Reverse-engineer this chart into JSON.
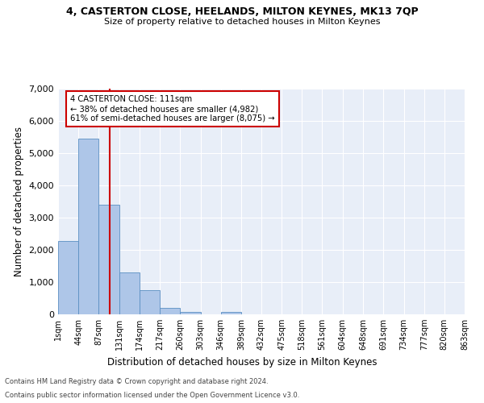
{
  "title_line1": "4, CASTERTON CLOSE, HEELANDS, MILTON KEYNES, MK13 7QP",
  "title_line2": "Size of property relative to detached houses in Milton Keynes",
  "xlabel": "Distribution of detached houses by size in Milton Keynes",
  "ylabel": "Number of detached properties",
  "footnote1": "Contains HM Land Registry data © Crown copyright and database right 2024.",
  "footnote2": "Contains public sector information licensed under the Open Government Licence v3.0.",
  "annotation_title": "4 CASTERTON CLOSE: 111sqm",
  "annotation_line2": "← 38% of detached houses are smaller (4,982)",
  "annotation_line3": "61% of semi-detached houses are larger (8,075) →",
  "bar_color": "#aec6e8",
  "bar_edge_color": "#5a8fc2",
  "bg_color": "#e8eef8",
  "vline_color": "#cc0000",
  "vline_x": 111,
  "bin_edges": [
    1,
    44,
    87,
    131,
    174,
    217,
    260,
    303,
    346,
    389,
    432,
    475,
    518,
    561,
    604,
    648,
    691,
    734,
    777,
    820,
    863
  ],
  "bar_heights": [
    2280,
    5450,
    3400,
    1300,
    750,
    200,
    75,
    0,
    75,
    0,
    0,
    0,
    0,
    0,
    0,
    0,
    0,
    0,
    0,
    0
  ],
  "ylim": [
    0,
    7000
  ],
  "yticks": [
    0,
    1000,
    2000,
    3000,
    4000,
    5000,
    6000,
    7000
  ],
  "annotation_box_color": "white",
  "annotation_box_edge": "#cc0000"
}
